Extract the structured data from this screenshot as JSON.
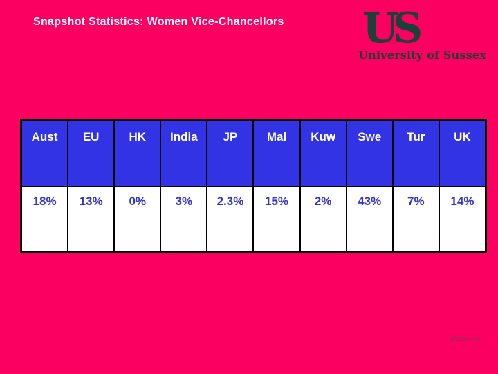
{
  "slide": {
    "title": "Snapshot Statistics: Women Vice-Chancellors",
    "logo": {
      "monogram": "US",
      "institution": "University of Sussex"
    },
    "table": {
      "columns": [
        "Aust",
        "EU",
        "HK",
        "India",
        "JP",
        "Mal",
        "Kuw",
        "Swe",
        "Tur",
        "UK"
      ],
      "values": [
        "18%",
        "13%",
        "0%",
        "3%",
        "2.3%",
        "15%",
        "2%",
        "43%",
        "7%",
        "14%"
      ]
    },
    "footer": {
      "date": "3/18/2016"
    },
    "colors": {
      "background": "#fb0060",
      "header_cell_blue": "#3333e6",
      "value_text_blue": "#3333cc",
      "title_text": "#ffffff",
      "logo_text": "#1d4038",
      "table_border": "#000000",
      "divider_line": "#d8cdd6",
      "date_text": "#6f3c55"
    }
  },
  "chart_data": {
    "type": "table",
    "title": "Snapshot Statistics: Women Vice-Chancellors",
    "categories": [
      "Aust",
      "EU",
      "HK",
      "India",
      "JP",
      "Mal",
      "Kuw",
      "Swe",
      "Tur",
      "UK"
    ],
    "values": [
      18,
      13,
      0,
      3,
      2.3,
      15,
      2,
      43,
      7,
      14
    ],
    "unit": "%"
  }
}
